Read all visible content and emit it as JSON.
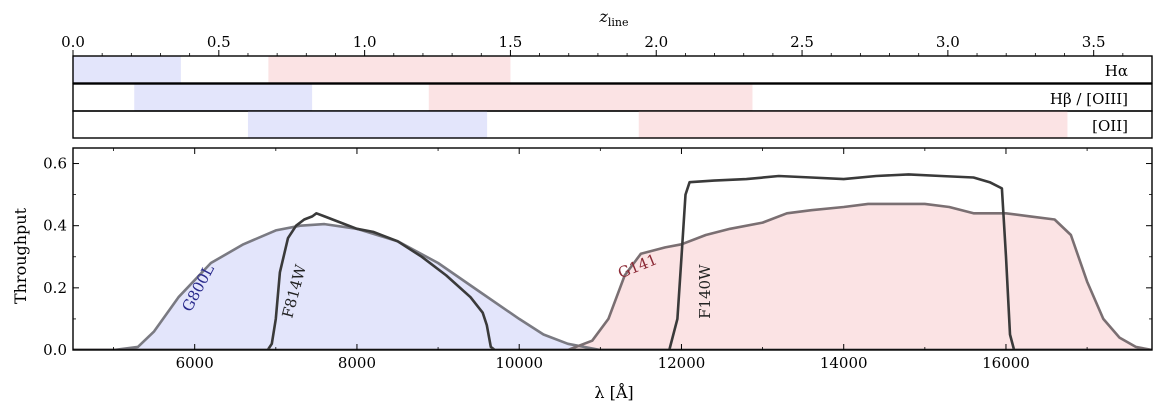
{
  "chart_data": {
    "type": "line",
    "top_axis": {
      "label_main": "z",
      "label_sub": "line",
      "xlim": [
        0.0,
        3.7
      ],
      "ticks": [
        {
          "value": 0.0,
          "label": "0.0"
        },
        {
          "value": 0.5,
          "label": "0.5"
        },
        {
          "value": 1.0,
          "label": "1.0"
        },
        {
          "value": 1.5,
          "label": "1.5"
        },
        {
          "value": 2.0,
          "label": "2.0"
        },
        {
          "value": 2.5,
          "label": "2.5"
        },
        {
          "value": 3.0,
          "label": "3.0"
        },
        {
          "value": 3.5,
          "label": "3.5"
        }
      ]
    },
    "line_rows": [
      {
        "name": "Hα",
        "ranges": [
          {
            "z": [
              0.0,
              0.37
            ],
            "color": "#e3e5fb"
          },
          {
            "z": [
              0.67,
              1.5
            ],
            "color": "#fbe3e4"
          }
        ]
      },
      {
        "name": "Hβ / [OIII]",
        "ranges": [
          {
            "z": [
              0.21,
              0.82
            ],
            "color": "#e3e5fb"
          },
          {
            "z": [
              1.22,
              2.33
            ],
            "color": "#fbe3e4"
          }
        ]
      },
      {
        "name": "[OII]",
        "ranges": [
          {
            "z": [
              0.6,
              1.42
            ],
            "color": "#e3e5fb"
          },
          {
            "z": [
              1.94,
              3.41
            ],
            "color": "#fbe3e4"
          }
        ]
      }
    ],
    "main_axis": {
      "xlabel": "λ [Å]",
      "ylabel": "Throughput",
      "xlim": [
        4500,
        17800
      ],
      "ylim": [
        0.0,
        0.65
      ],
      "xticks": [
        {
          "value": 6000,
          "label": "6000"
        },
        {
          "value": 8000,
          "label": "8000"
        },
        {
          "value": 10000,
          "label": "10000"
        },
        {
          "value": 12000,
          "label": "12000"
        },
        {
          "value": 14000,
          "label": "14000"
        },
        {
          "value": 16000,
          "label": "16000"
        }
      ],
      "yticks": [
        {
          "value": 0.0,
          "label": "0.0"
        },
        {
          "value": 0.2,
          "label": "0.2"
        },
        {
          "value": 0.4,
          "label": "0.4"
        },
        {
          "value": 0.6,
          "label": "0.6"
        }
      ]
    },
    "series": [
      {
        "name": "G800L",
        "label_color": "#2a2a8c",
        "fill": "#e3e5fb",
        "stroke": "#7a7a82",
        "label_pos": {
          "x": 5950,
          "y": 0.12
        },
        "label_rotate": -62,
        "points": [
          [
            4500,
            0
          ],
          [
            5000,
            0.0
          ],
          [
            5300,
            0.01
          ],
          [
            5500,
            0.06
          ],
          [
            5800,
            0.17
          ],
          [
            6200,
            0.28
          ],
          [
            6600,
            0.34
          ],
          [
            7000,
            0.385
          ],
          [
            7300,
            0.4
          ],
          [
            7600,
            0.405
          ],
          [
            8000,
            0.39
          ],
          [
            8500,
            0.35
          ],
          [
            9000,
            0.28
          ],
          [
            9500,
            0.19
          ],
          [
            10000,
            0.1
          ],
          [
            10300,
            0.05
          ],
          [
            10600,
            0.02
          ],
          [
            11000,
            0.0
          ],
          [
            17800,
            0
          ]
        ]
      },
      {
        "name": "F814W",
        "label_color": "#222222",
        "fill": "none",
        "stroke": "#3a3a3a",
        "label_pos": {
          "x": 7200,
          "y": 0.1
        },
        "label_rotate": -75,
        "points": [
          [
            4500,
            0
          ],
          [
            6900,
            0
          ],
          [
            6950,
            0.02
          ],
          [
            7000,
            0.1
          ],
          [
            7050,
            0.25
          ],
          [
            7150,
            0.36
          ],
          [
            7250,
            0.4
          ],
          [
            7350,
            0.42
          ],
          [
            7450,
            0.43
          ],
          [
            7500,
            0.44
          ],
          [
            7600,
            0.43
          ],
          [
            7700,
            0.42
          ],
          [
            7800,
            0.41
          ],
          [
            8000,
            0.39
          ],
          [
            8200,
            0.38
          ],
          [
            8500,
            0.35
          ],
          [
            8800,
            0.3
          ],
          [
            9100,
            0.24
          ],
          [
            9400,
            0.17
          ],
          [
            9550,
            0.12
          ],
          [
            9600,
            0.08
          ],
          [
            9650,
            0.01
          ],
          [
            9700,
            0
          ],
          [
            17800,
            0
          ]
        ]
      },
      {
        "name": "G141",
        "label_color": "#8c2a36",
        "fill": "#fbe3e4",
        "stroke": "#7a6f72",
        "label_pos": {
          "x": 11250,
          "y": 0.23
        },
        "label_rotate": -22,
        "points": [
          [
            4500,
            0
          ],
          [
            10600,
            0
          ],
          [
            10900,
            0.03
          ],
          [
            11100,
            0.1
          ],
          [
            11300,
            0.24
          ],
          [
            11500,
            0.31
          ],
          [
            11800,
            0.33
          ],
          [
            12000,
            0.34
          ],
          [
            12300,
            0.37
          ],
          [
            12600,
            0.39
          ],
          [
            13000,
            0.41
          ],
          [
            13300,
            0.44
          ],
          [
            13600,
            0.45
          ],
          [
            14000,
            0.46
          ],
          [
            14300,
            0.47
          ],
          [
            14600,
            0.47
          ],
          [
            15000,
            0.47
          ],
          [
            15300,
            0.46
          ],
          [
            15600,
            0.44
          ],
          [
            16000,
            0.44
          ],
          [
            16300,
            0.43
          ],
          [
            16600,
            0.42
          ],
          [
            16800,
            0.37
          ],
          [
            17000,
            0.22
          ],
          [
            17200,
            0.1
          ],
          [
            17400,
            0.04
          ],
          [
            17600,
            0.01
          ],
          [
            17800,
            0.0
          ]
        ]
      },
      {
        "name": "F140W",
        "label_color": "#222222",
        "fill": "none",
        "stroke": "#3a3a3a",
        "label_pos": {
          "x": 12350,
          "y": 0.1
        },
        "label_rotate": -90,
        "points": [
          [
            4500,
            0
          ],
          [
            11850,
            0
          ],
          [
            11950,
            0.1
          ],
          [
            12000,
            0.3
          ],
          [
            12050,
            0.5
          ],
          [
            12100,
            0.54
          ],
          [
            12400,
            0.545
          ],
          [
            12800,
            0.55
          ],
          [
            13200,
            0.56
          ],
          [
            13600,
            0.555
          ],
          [
            14000,
            0.55
          ],
          [
            14400,
            0.56
          ],
          [
            14800,
            0.565
          ],
          [
            15200,
            0.56
          ],
          [
            15600,
            0.555
          ],
          [
            15800,
            0.54
          ],
          [
            15950,
            0.52
          ],
          [
            16000,
            0.3
          ],
          [
            16050,
            0.05
          ],
          [
            16100,
            0
          ],
          [
            17800,
            0
          ]
        ]
      }
    ]
  }
}
